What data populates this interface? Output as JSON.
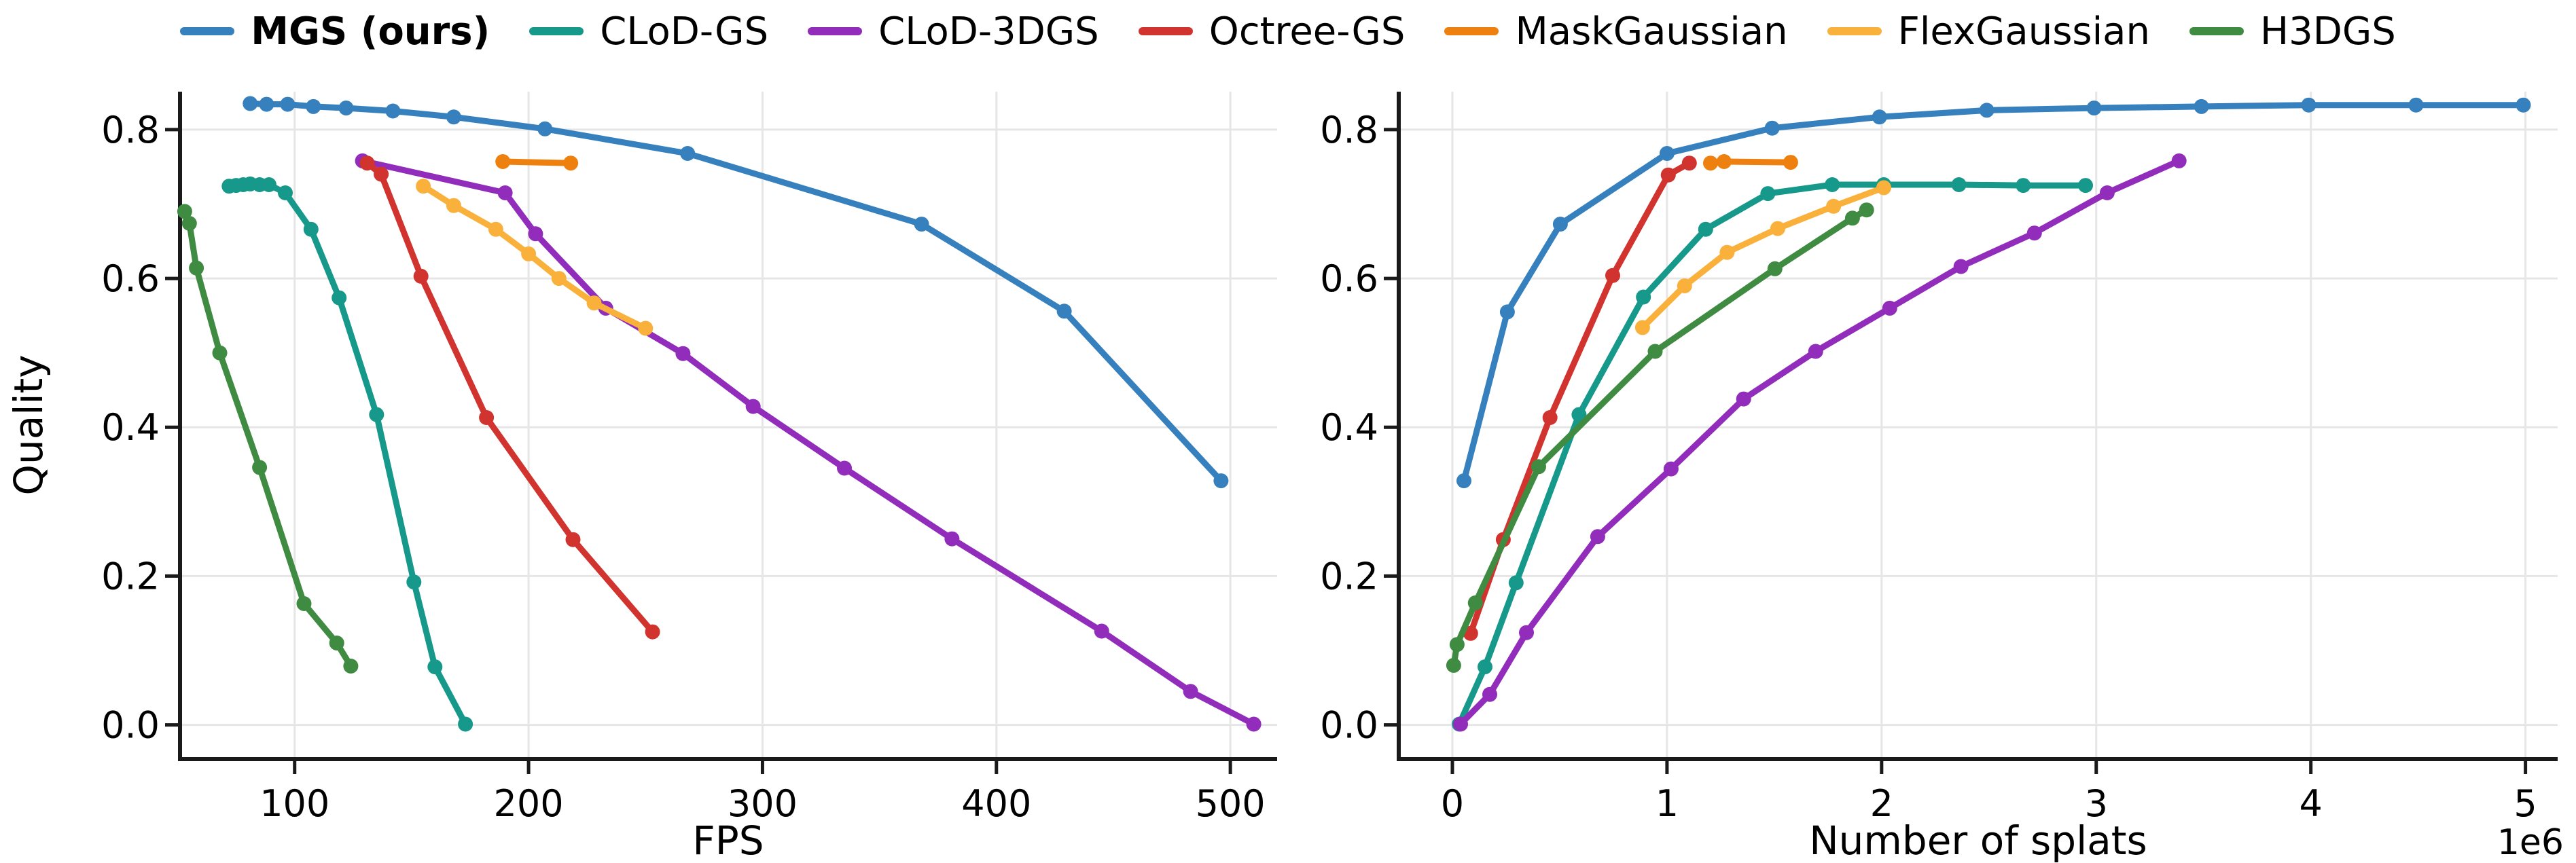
{
  "legend": {
    "items": [
      {
        "label": "MGS (ours)",
        "color": "#3780be",
        "bold": true
      },
      {
        "label": "CLoD-GS",
        "color": "#16998a",
        "bold": false
      },
      {
        "label": "CLoD-3DGS",
        "color": "#912cbb",
        "bold": false
      },
      {
        "label": "Octree-GS",
        "color": "#d1332f",
        "bold": false
      },
      {
        "label": "MaskGaussian",
        "color": "#ee8010",
        "bold": false
      },
      {
        "label": "FlexGaussian",
        "color": "#f9b13c",
        "bold": false
      },
      {
        "label": "H3DGS",
        "color": "#3f8b42",
        "bold": false
      }
    ]
  },
  "chart_data": [
    {
      "type": "line",
      "title": "",
      "xlabel": "FPS",
      "ylabel": "Quality",
      "x_offset_label": "",
      "xlim": [
        51,
        520
      ],
      "ylim": [
        -0.046,
        0.851
      ],
      "xticks": [
        100,
        200,
        300,
        400,
        500
      ],
      "yticks": [
        0.0,
        0.2,
        0.4,
        0.6,
        0.8
      ],
      "grid": true,
      "legend_position": "top-outside",
      "series": [
        {
          "name": "MGS (ours)",
          "color": "#3780be",
          "points": [
            [
              81,
              0.835
            ],
            [
              88,
              0.834
            ],
            [
              97,
              0.834
            ],
            [
              108,
              0.831
            ],
            [
              122,
              0.829
            ],
            [
              142,
              0.825
            ],
            [
              168,
              0.817
            ],
            [
              207,
              0.801
            ],
            [
              268,
              0.768
            ],
            [
              368,
              0.673
            ],
            [
              429,
              0.556
            ],
            [
              496,
              0.328
            ]
          ]
        },
        {
          "name": "CLoD-GS",
          "color": "#16998a",
          "points": [
            [
              72,
              0.724
            ],
            [
              75,
              0.725
            ],
            [
              78,
              0.726
            ],
            [
              81,
              0.727
            ],
            [
              85,
              0.726
            ],
            [
              89,
              0.726
            ],
            [
              96,
              0.715
            ],
            [
              107,
              0.666
            ],
            [
              119,
              0.574
            ],
            [
              135,
              0.417
            ],
            [
              151,
              0.192
            ],
            [
              160,
              0.078
            ],
            [
              173,
              0.001
            ]
          ]
        },
        {
          "name": "CLoD-3DGS",
          "color": "#912cbb",
          "points": [
            [
              129,
              0.758
            ],
            [
              190,
              0.715
            ],
            [
              203,
              0.66
            ],
            [
              233,
              0.56
            ],
            [
              266,
              0.499
            ],
            [
              296,
              0.428
            ],
            [
              335,
              0.345
            ],
            [
              381,
              0.25
            ],
            [
              445,
              0.126
            ],
            [
              483,
              0.045
            ],
            [
              510,
              0.001
            ]
          ]
        },
        {
          "name": "Octree-GS",
          "color": "#d1332f",
          "points": [
            [
              131,
              0.755
            ],
            [
              137,
              0.74
            ],
            [
              154,
              0.603
            ],
            [
              182,
              0.413
            ],
            [
              219,
              0.249
            ],
            [
              253,
              0.125
            ]
          ]
        },
        {
          "name": "MaskGaussian",
          "color": "#ee8010",
          "points": [
            [
              189,
              0.757
            ],
            [
              218,
              0.755
            ]
          ]
        },
        {
          "name": "FlexGaussian",
          "color": "#f9b13c",
          "points": [
            [
              155,
              0.724
            ],
            [
              168,
              0.698
            ],
            [
              186,
              0.666
            ],
            [
              200,
              0.633
            ],
            [
              213,
              0.6
            ],
            [
              228,
              0.567
            ],
            [
              250,
              0.533
            ]
          ]
        },
        {
          "name": "H3DGS",
          "color": "#3f8b42",
          "points": [
            [
              53,
              0.69
            ],
            [
              55,
              0.674
            ],
            [
              58,
              0.614
            ],
            [
              68,
              0.5
            ],
            [
              85,
              0.346
            ],
            [
              104,
              0.163
            ],
            [
              118,
              0.11
            ],
            [
              124,
              0.079
            ]
          ]
        }
      ]
    },
    {
      "type": "line",
      "title": "",
      "xlabel": "Number of splats",
      "ylabel": "",
      "x_offset_label": "1e6",
      "x_unit": 1000000,
      "xlim": [
        -0.25,
        5.15
      ],
      "ylim": [
        -0.046,
        0.851
      ],
      "xticks": [
        0,
        1,
        2,
        3,
        4,
        5
      ],
      "yticks": [
        0.0,
        0.2,
        0.4,
        0.6,
        0.8
      ],
      "grid": true,
      "series": [
        {
          "name": "MGS (ours)",
          "color": "#3780be",
          "points": [
            [
              0.054,
              0.328
            ],
            [
              0.256,
              0.555
            ],
            [
              0.503,
              0.673
            ],
            [
              1.0,
              0.768
            ],
            [
              1.49,
              0.802
            ],
            [
              1.99,
              0.817
            ],
            [
              2.49,
              0.826
            ],
            [
              2.99,
              0.829
            ],
            [
              3.49,
              0.831
            ],
            [
              3.99,
              0.833
            ],
            [
              4.49,
              0.833
            ],
            [
              4.99,
              0.833
            ]
          ]
        },
        {
          "name": "CLoD-GS",
          "color": "#16998a",
          "points": [
            [
              0.032,
              0.001
            ],
            [
              0.152,
              0.078
            ],
            [
              0.297,
              0.191
            ],
            [
              0.59,
              0.417
            ],
            [
              0.89,
              0.575
            ],
            [
              1.18,
              0.666
            ],
            [
              1.47,
              0.714
            ],
            [
              1.77,
              0.726
            ],
            [
              2.01,
              0.726
            ],
            [
              2.36,
              0.726
            ],
            [
              2.66,
              0.725
            ],
            [
              2.95,
              0.725
            ]
          ]
        },
        {
          "name": "CLoD-3DGS",
          "color": "#912cbb",
          "points": [
            [
              0.038,
              0.001
            ],
            [
              0.174,
              0.041
            ],
            [
              0.345,
              0.124
            ],
            [
              0.677,
              0.253
            ],
            [
              1.019,
              0.344
            ],
            [
              1.357,
              0.438
            ],
            [
              1.693,
              0.502
            ],
            [
              2.038,
              0.56
            ],
            [
              2.37,
              0.616
            ],
            [
              2.712,
              0.661
            ],
            [
              3.051,
              0.715
            ],
            [
              3.386,
              0.758
            ]
          ]
        },
        {
          "name": "Octree-GS",
          "color": "#d1332f",
          "points": [
            [
              0.085,
              0.123
            ],
            [
              0.237,
              0.249
            ],
            [
              0.455,
              0.413
            ],
            [
              0.747,
              0.604
            ],
            [
              1.006,
              0.739
            ],
            [
              1.104,
              0.755
            ]
          ]
        },
        {
          "name": "MaskGaussian",
          "color": "#ee8010",
          "points": [
            [
              1.203,
              0.755
            ],
            [
              1.266,
              0.757
            ],
            [
              1.576,
              0.756
            ]
          ]
        },
        {
          "name": "FlexGaussian",
          "color": "#f9b13c",
          "points": [
            [
              0.886,
              0.534
            ],
            [
              1.082,
              0.59
            ],
            [
              1.28,
              0.635
            ],
            [
              1.516,
              0.667
            ],
            [
              1.776,
              0.697
            ],
            [
              2.01,
              0.722
            ]
          ]
        },
        {
          "name": "H3DGS",
          "color": "#3f8b42",
          "points": [
            [
              0.006,
              0.08
            ],
            [
              0.022,
              0.108
            ],
            [
              0.107,
              0.164
            ],
            [
              0.402,
              0.347
            ],
            [
              0.945,
              0.502
            ],
            [
              1.503,
              0.613
            ],
            [
              1.864,
              0.681
            ],
            [
              1.93,
              0.692
            ]
          ]
        }
      ]
    }
  ]
}
